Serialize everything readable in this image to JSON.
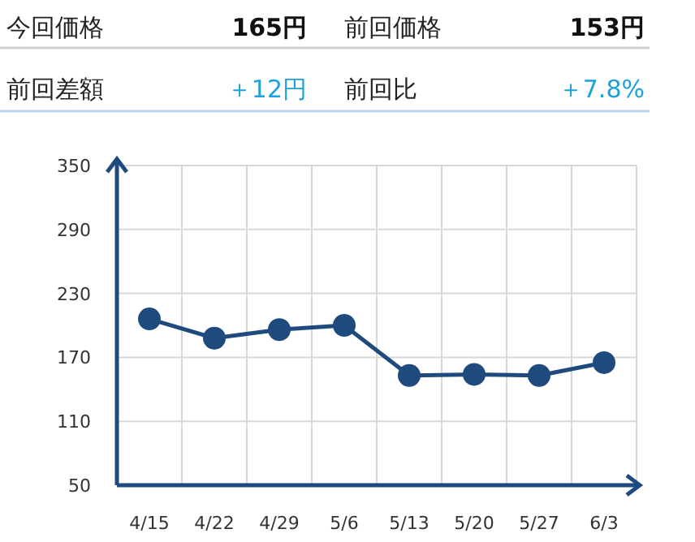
{
  "chart_data": [
    {
      "type": "other",
      "annotations": [
        "今回価格",
        "165円",
        "前回価格",
        "153円",
        "前回差額",
        "＋12円",
        "前回比",
        "＋7.8%"
      ]
    },
    {
      "type": "line",
      "categories": [
        "4/15",
        "4/22",
        "4/29",
        "5/6",
        "5/13",
        "5/20",
        "5/27",
        "6/3"
      ],
      "values": [
        206,
        188,
        196,
        200,
        153,
        154,
        153,
        165
      ],
      "color": "#1f4a7e",
      "ylim": [
        50,
        350
      ],
      "yticks": [
        50,
        110,
        170,
        230,
        290,
        350
      ],
      "grid": true,
      "marker": "circle"
    }
  ]
}
